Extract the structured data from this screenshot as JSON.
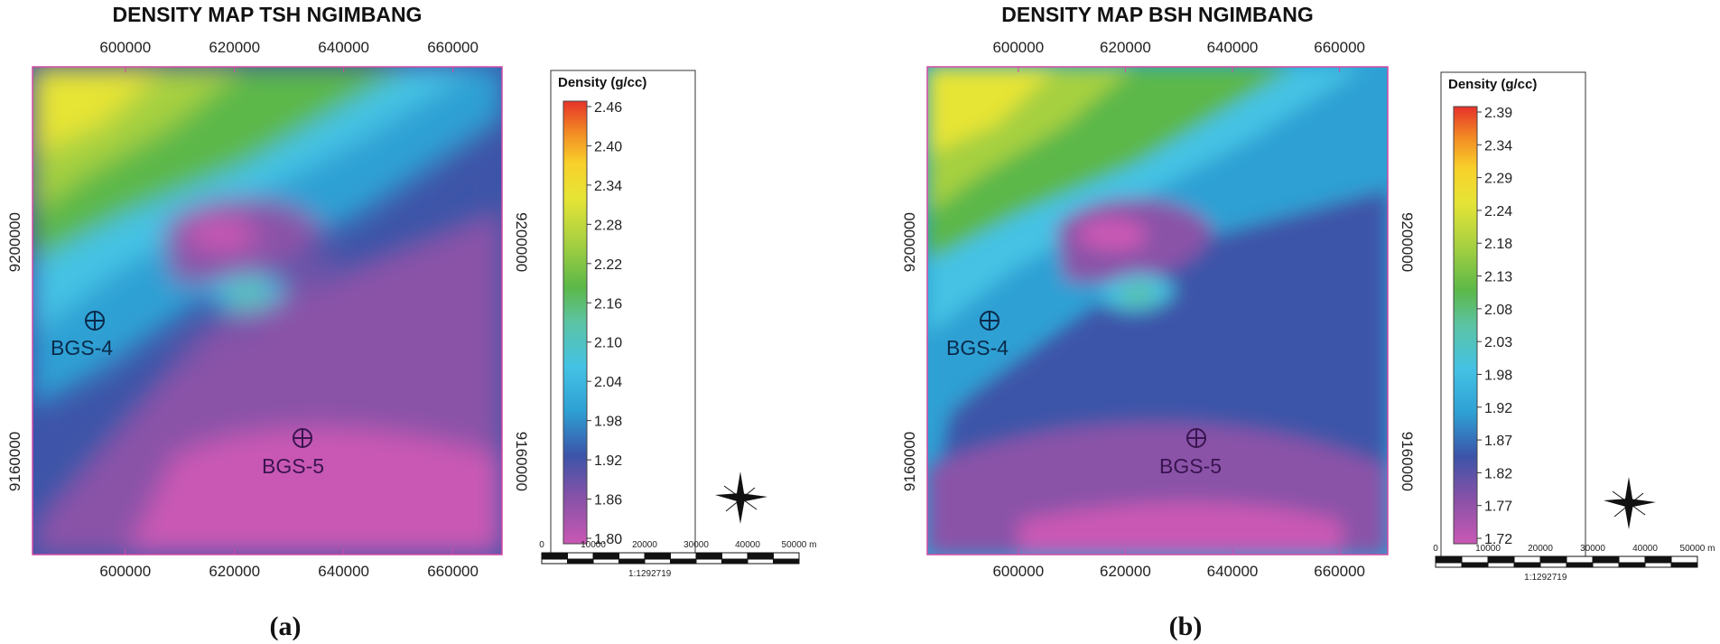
{
  "chart_data": [
    {
      "type": "heatmap",
      "panel_label": "a",
      "title": "DENSITY MAP TSH NGIMBANG",
      "x_ticks": [
        600000,
        620000,
        640000,
        660000
      ],
      "x_tick_labels": [
        "600000",
        "620000",
        "640000",
        "660000"
      ],
      "y_ticks": [
        9160000,
        9200000
      ],
      "y_tick_labels": [
        "9160000",
        "9200000"
      ],
      "colorbar": {
        "title": "Density (g/cc)",
        "min": 1.8,
        "max": 2.46,
        "ticks": [
          "2.46",
          "2.40",
          "2.34",
          "2.28",
          "2.22",
          "2.16",
          "2.10",
          "2.04",
          "1.98",
          "1.92",
          "1.86",
          "1.80"
        ]
      },
      "wells": [
        {
          "name": "BGS-4",
          "color": "#0a2a4a"
        },
        {
          "name": "BGS-5",
          "color": "#3a1450"
        }
      ],
      "scale_bar": {
        "labels": [
          "0",
          "10000",
          "20000",
          "30000",
          "40000",
          "50000 m"
        ],
        "ratio": "1:1292719"
      },
      "palette": [
        "#c958b4",
        "#8a52a8",
        "#3c54a8",
        "#2ea0d4",
        "#44c2e4",
        "#5cc3a4",
        "#5cb848",
        "#a6d040",
        "#e6e436",
        "#f8d02a",
        "#f28a24",
        "#e6322a"
      ]
    },
    {
      "type": "heatmap",
      "panel_label": "b",
      "title": "DENSITY MAP BSH NGIMBANG",
      "x_ticks": [
        600000,
        620000,
        640000,
        660000
      ],
      "x_tick_labels": [
        "600000",
        "620000",
        "640000",
        "660000"
      ],
      "y_ticks": [
        9160000,
        9200000
      ],
      "y_tick_labels": [
        "9160000",
        "9200000"
      ],
      "colorbar": {
        "title": "Density (g/cc)",
        "min": 1.72,
        "max": 2.39,
        "ticks": [
          "2.39",
          "2.34",
          "2.29",
          "2.24",
          "2.18",
          "2.13",
          "2.08",
          "2.03",
          "1.98",
          "1.92",
          "1.87",
          "1.82",
          "1.77",
          "1.72"
        ]
      },
      "wells": [
        {
          "name": "BGS-4",
          "color": "#0a2a4a"
        },
        {
          "name": "BGS-5",
          "color": "#3a1450"
        }
      ],
      "scale_bar": {
        "labels": [
          "0",
          "10000",
          "20000",
          "30000",
          "40000",
          "50000 m"
        ],
        "ratio": "1:1292719"
      },
      "palette": [
        "#c958b4",
        "#8a52a8",
        "#3c54a8",
        "#2ea0d4",
        "#44c2e4",
        "#5cc3a4",
        "#5cb848",
        "#a6d040",
        "#e6e436",
        "#f8d02a",
        "#f28a24",
        "#e6322a"
      ]
    }
  ]
}
